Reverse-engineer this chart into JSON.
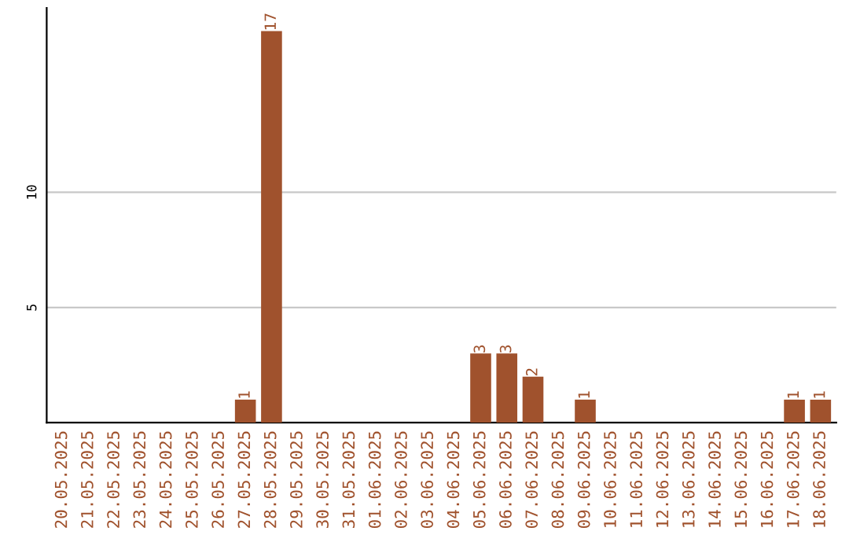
{
  "chart_data": {
    "type": "bar",
    "categories": [
      "20.05.2025",
      "21.05.2025",
      "22.05.2025",
      "23.05.2025",
      "24.05.2025",
      "25.05.2025",
      "26.05.2025",
      "27.05.2025",
      "28.05.2025",
      "29.05.2025",
      "30.05.2025",
      "31.05.2025",
      "01.06.2025",
      "02.06.2025",
      "03.06.2025",
      "04.06.2025",
      "05.06.2025",
      "06.06.2025",
      "07.06.2025",
      "08.06.2025",
      "09.06.2025",
      "10.06.2025",
      "11.06.2025",
      "12.06.2025",
      "13.06.2025",
      "14.06.2025",
      "15.06.2025",
      "16.06.2025",
      "17.06.2025",
      "18.06.2025"
    ],
    "values": [
      0,
      0,
      0,
      0,
      0,
      0,
      0,
      1,
      17,
      0,
      0,
      0,
      0,
      0,
      0,
      0,
      3,
      3,
      2,
      0,
      1,
      0,
      0,
      0,
      0,
      0,
      0,
      0,
      1,
      1
    ],
    "value_labels": [
      null,
      null,
      null,
      null,
      null,
      null,
      null,
      "1",
      "17",
      null,
      null,
      null,
      null,
      null,
      null,
      null,
      "3",
      "3",
      "2",
      null,
      "1",
      null,
      null,
      null,
      null,
      null,
      null,
      null,
      "1",
      "1"
    ],
    "color": "#a0522d",
    "ylim": [
      0,
      18
    ],
    "yticks": [
      5,
      10
    ],
    "grid": "y"
  }
}
